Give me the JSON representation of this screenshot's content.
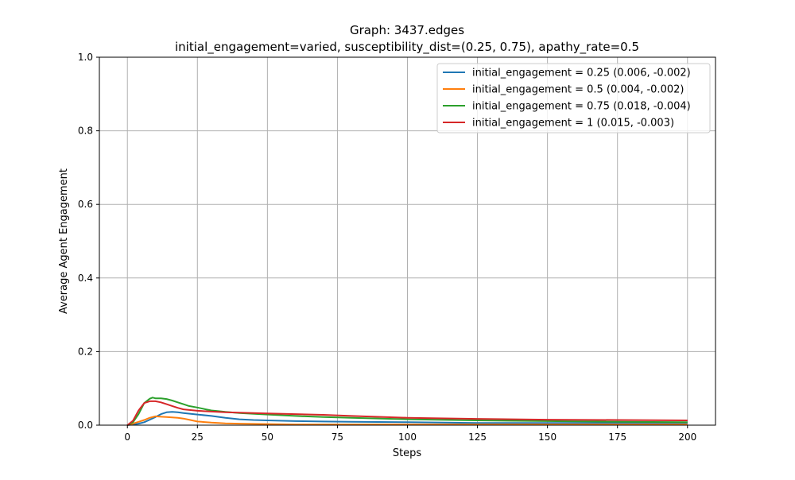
{
  "chart_data": {
    "type": "line",
    "title_line1": "Graph: 3437.edges",
    "title_line2": "initial_engagement=varied, susceptibility_dist=(0.25, 0.75), apathy_rate=0.5",
    "xlabel": "Steps",
    "ylabel": "Average Agent Engagement",
    "xlim": [
      -10,
      210
    ],
    "ylim": [
      0,
      1
    ],
    "xticks": [
      0,
      25,
      50,
      75,
      100,
      125,
      150,
      175,
      200
    ],
    "yticks": [
      0.0,
      0.2,
      0.4,
      0.6,
      0.8,
      1.0
    ],
    "xtick_labels": [
      "0",
      "25",
      "50",
      "75",
      "100",
      "125",
      "150",
      "175",
      "200"
    ],
    "ytick_labels": [
      "0.0",
      "0.2",
      "0.4",
      "0.6",
      "0.8",
      "1.0"
    ],
    "grid": true,
    "legend_position": "top-right",
    "series": [
      {
        "name": "initial_engagement = 0.25 (0.006, -0.002)",
        "color": "#1f77b4",
        "x": [
          0,
          2,
          4,
          6,
          8,
          10,
          12,
          14,
          16,
          18,
          20,
          25,
          30,
          35,
          40,
          45,
          50,
          60,
          70,
          80,
          100,
          125,
          150,
          175,
          200
        ],
        "y": [
          0.0,
          0.002,
          0.004,
          0.008,
          0.015,
          0.022,
          0.03,
          0.035,
          0.036,
          0.035,
          0.033,
          0.029,
          0.025,
          0.02,
          0.016,
          0.014,
          0.013,
          0.011,
          0.01,
          0.009,
          0.008,
          0.006,
          0.006,
          0.006,
          0.006
        ]
      },
      {
        "name": "initial_engagement = 0.5 (0.004, -0.002)",
        "color": "#ff7f0e",
        "x": [
          0,
          2,
          4,
          6,
          8,
          10,
          12,
          14,
          16,
          18,
          20,
          22,
          25,
          30,
          35,
          40,
          50,
          60,
          75,
          100,
          125,
          150,
          175,
          200
        ],
        "y": [
          0.0,
          0.004,
          0.009,
          0.014,
          0.02,
          0.024,
          0.023,
          0.022,
          0.021,
          0.02,
          0.018,
          0.015,
          0.01,
          0.007,
          0.005,
          0.004,
          0.003,
          0.002,
          0.002,
          0.002,
          0.002,
          0.002,
          0.002,
          0.002
        ]
      },
      {
        "name": "initial_engagement = 0.75 (0.018, -0.004)",
        "color": "#2ca02c",
        "x": [
          0,
          2,
          4,
          6,
          8,
          9,
          10,
          12,
          14,
          16,
          18,
          20,
          22,
          25,
          28,
          30,
          35,
          40,
          50,
          60,
          70,
          80,
          100,
          125,
          150,
          175,
          200
        ],
        "y": [
          0.0,
          0.008,
          0.03,
          0.06,
          0.072,
          0.075,
          0.073,
          0.073,
          0.071,
          0.067,
          0.062,
          0.057,
          0.052,
          0.048,
          0.043,
          0.04,
          0.036,
          0.033,
          0.029,
          0.025,
          0.022,
          0.02,
          0.016,
          0.013,
          0.011,
          0.009,
          0.008
        ]
      },
      {
        "name": "initial_engagement = 1 (0.015, -0.003)",
        "color": "#d62728",
        "x": [
          0,
          2,
          4,
          6,
          8,
          10,
          12,
          14,
          16,
          18,
          20,
          25,
          30,
          35,
          40,
          50,
          60,
          70,
          80,
          100,
          125,
          150,
          175,
          200
        ],
        "y": [
          0.0,
          0.012,
          0.04,
          0.06,
          0.065,
          0.065,
          0.062,
          0.057,
          0.052,
          0.047,
          0.043,
          0.039,
          0.037,
          0.035,
          0.034,
          0.032,
          0.03,
          0.028,
          0.025,
          0.02,
          0.017,
          0.015,
          0.014,
          0.013
        ]
      }
    ]
  }
}
